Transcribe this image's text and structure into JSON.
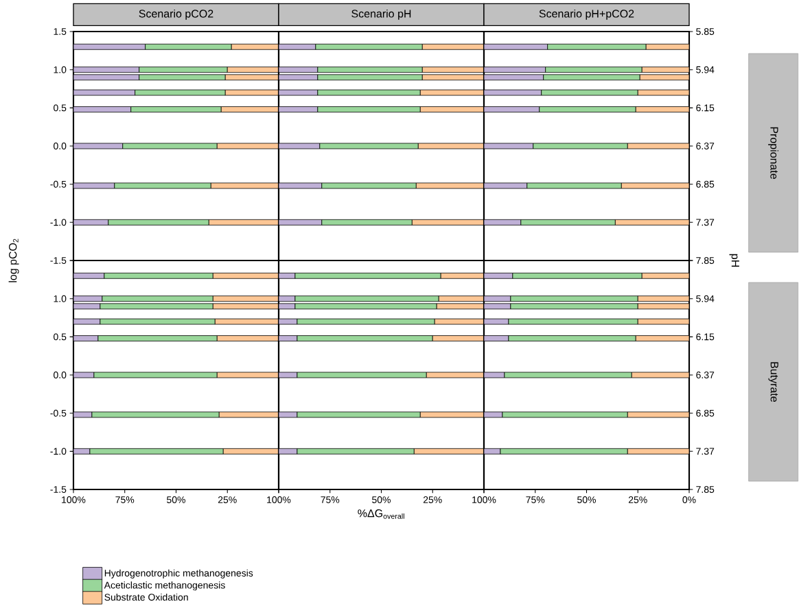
{
  "chart_data": [
    {
      "type": "bar",
      "orientation": "horizontal",
      "stacked": true,
      "title": "Scenario pCO2",
      "ylabel": "log pCO$_{2}$",
      "tick_labels": "y",
      "x": [
        1.3,
        1.0,
        0.9,
        0.7,
        0.48,
        0,
        -0.52,
        -1.0
      ],
      "xlim": [
        100,
        0
      ],
      "ylim": [
        -1.5,
        1.5
      ],
      "yticks": [
        -1.5,
        {
          "value": -1,
          "label": "-1.0"
        },
        -0.5,
        {
          "value": 0,
          "label": "0.0"
        },
        0.5,
        {
          "value": 1,
          "label": "1.0"
        },
        1.5
      ],
      "series": [
        {
          "color": "#fcc695",
          "values": [
            23,
            25,
            26,
            26,
            28,
            30,
            33,
            34
          ]
        },
        {
          "color": "#99d69a",
          "values": [
            42,
            43,
            42,
            44,
            44,
            46,
            47,
            49
          ]
        },
        {
          "color": "#bfb0d6",
          "values": [
            35,
            32,
            32,
            30,
            28,
            24,
            20,
            17
          ]
        }
      ]
    },
    {
      "type": "bar",
      "orientation": "horizontal",
      "stacked": true,
      "title": "Scenario pH",
      "tick_labels": false,
      "x": [
        1.3,
        1.0,
        0.9,
        0.7,
        0.48,
        0,
        -0.52,
        -1.0
      ],
      "xlim": [
        100,
        0
      ],
      "ylim": [
        -1.5,
        1.5
      ],
      "series": [
        {
          "color": "#fcc695",
          "values": [
            30,
            30,
            30,
            31,
            31,
            32,
            33,
            35
          ]
        },
        {
          "color": "#99d69a",
          "values": [
            52,
            51,
            51,
            50,
            50,
            48,
            46,
            44
          ]
        },
        {
          "color": "#bfb0d6",
          "values": [
            18,
            19,
            19,
            19,
            19,
            20,
            21,
            21
          ]
        }
      ]
    },
    {
      "type": "bar",
      "orientation": "horizontal",
      "stacked": true,
      "title": "Scenario pH+pCO2",
      "y2label": "pH",
      "annotations": [
        "Propionate",
        "5.85",
        "5.94",
        "6.15",
        "6.37",
        "6.85",
        "7.37",
        "7.85"
      ],
      "tick_labels": false,
      "x": [
        1.3,
        1.0,
        0.9,
        0.7,
        0.48,
        0,
        -0.52,
        -1.0
      ],
      "xlim": [
        100,
        0
      ],
      "ylim": [
        -1.5,
        1.5
      ],
      "yticks": [
        -1.5,
        -1,
        -0.5,
        0,
        0.5,
        1,
        1.5
      ],
      "series": [
        {
          "color": "#fcc695",
          "values": [
            21,
            23,
            24,
            25,
            26,
            30,
            33,
            36
          ]
        },
        {
          "color": "#99d69a",
          "values": [
            48,
            47,
            47,
            47,
            47,
            46,
            46,
            46
          ]
        },
        {
          "color": "#bfb0d6",
          "values": [
            31,
            30,
            29,
            28,
            27,
            24,
            21,
            18
          ]
        }
      ]
    },
    {
      "type": "bar",
      "orientation": "horizontal",
      "stacked": true,
      "legend": "bottom",
      "x": [
        1.3,
        1.0,
        0.9,
        0.7,
        0.48,
        0,
        -0.52,
        -1.0
      ],
      "xlim": [
        100,
        0
      ],
      "xticks": [
        {
          "value": 100,
          "label": "100%"
        },
        {
          "value": 75,
          "label": "75%"
        },
        {
          "value": 50,
          "label": "50%"
        },
        {
          "value": 25,
          "label": "25%"
        },
        {
          "value": 0,
          "label": null
        }
      ],
      "ylim": [
        -1.5,
        1.5
      ],
      "yticks": [
        -1.5,
        {
          "value": -1,
          "label": "-1.0"
        },
        -0.5,
        {
          "value": 0,
          "label": "0.0"
        },
        0.5,
        {
          "value": 1,
          "label": "1.0"
        },
        {
          "value": 1.5,
          "label": null
        }
      ],
      "series": [
        {
          "name": "Substrate Oxidation",
          "color": "#fcc695",
          "values": [
            32,
            32,
            32,
            31,
            30,
            30,
            29,
            27
          ]
        },
        {
          "name": "Aceticlastic methanogenesis",
          "color": "#99d69a",
          "values": [
            53,
            54,
            55,
            56,
            58,
            60,
            62,
            65
          ]
        },
        {
          "name": "Hydrogenotrophic methanogenesis",
          "color": "#bfb0d6",
          "values": [
            15,
            14,
            13,
            13,
            12,
            10,
            9,
            8
          ]
        }
      ]
    },
    {
      "type": "bar",
      "orientation": "horizontal",
      "stacked": true,
      "xlabel": "%ΔG$_{overall}$",
      "tick_labels": "x",
      "x": [
        1.3,
        1.0,
        0.9,
        0.7,
        0.48,
        0,
        -0.52,
        -1.0
      ],
      "xlim": [
        100,
        0
      ],
      "xticks": [
        {
          "value": 100,
          "label": "100%"
        },
        {
          "value": 75,
          "label": "75%"
        },
        {
          "value": 50,
          "label": "50%"
        },
        {
          "value": 25,
          "label": "25%"
        },
        {
          "value": 0,
          "label": null
        }
      ],
      "ylim": [
        -1.5,
        1.5
      ],
      "series": [
        {
          "color": "#fcc695",
          "values": [
            21,
            22,
            23,
            24,
            25,
            28,
            31,
            34
          ]
        },
        {
          "color": "#99d69a",
          "values": [
            71,
            70,
            69,
            67,
            66,
            63,
            60,
            57
          ]
        },
        {
          "color": "#bfb0d6",
          "values": [
            8,
            8,
            8,
            9,
            9,
            9,
            9,
            9
          ]
        }
      ]
    },
    {
      "type": "bar",
      "orientation": "horizontal",
      "stacked": true,
      "annotations": [
        "Butyrate",
        "5.94",
        "6.15",
        "6.37",
        "6.85",
        "7.37",
        "7.85"
      ],
      "tick_labels": "x",
      "x": [
        1.3,
        1.0,
        0.9,
        0.7,
        0.48,
        0,
        -0.52,
        -1.0
      ],
      "xlim": [
        100,
        0
      ],
      "xticks": [
        {
          "value": 100,
          "label": "100%"
        },
        {
          "value": 75,
          "label": "75%"
        },
        {
          "value": 50,
          "label": "50%"
        },
        {
          "value": 25,
          "label": "25%"
        },
        {
          "value": 0,
          "label": "0%"
        }
      ],
      "ylim": [
        -1.5,
        1.5
      ],
      "yticks": [
        -1.5,
        -1,
        -0.5,
        0,
        0.5,
        1,
        1.5
      ],
      "series": [
        {
          "color": "#fcc695",
          "values": [
            23,
            25,
            25,
            25,
            26,
            28,
            30,
            30
          ]
        },
        {
          "color": "#99d69a",
          "values": [
            63,
            62,
            62,
            63,
            62,
            62,
            61,
            62
          ]
        },
        {
          "color": "#bfb0d6",
          "values": [
            14,
            13,
            13,
            12,
            12,
            10,
            9,
            8
          ]
        }
      ]
    }
  ]
}
